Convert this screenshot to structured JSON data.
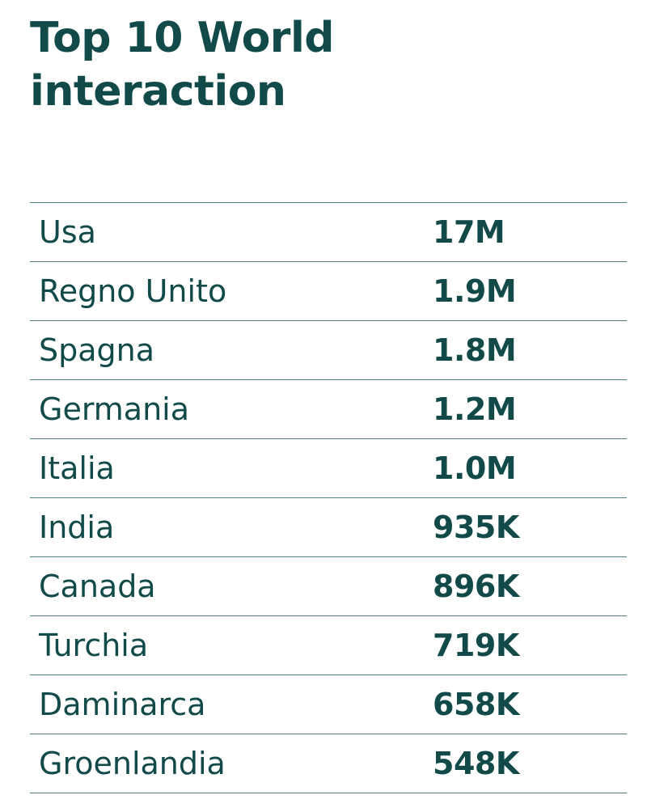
{
  "header": {
    "title_line1": "Top 10 World",
    "title_line2": "interaction"
  },
  "colors": {
    "text": "#124a4a",
    "divider": "#4f7f80",
    "background": "#ffffff"
  },
  "chart_data": {
    "type": "table",
    "title": "Top 10 World interaction",
    "rows": [
      {
        "country": "Usa",
        "value": "17M"
      },
      {
        "country": "Regno Unito",
        "value": "1.9M"
      },
      {
        "country": "Spagna",
        "value": "1.8M"
      },
      {
        "country": "Germania",
        "value": "1.2M"
      },
      {
        "country": "Italia",
        "value": "1.0M"
      },
      {
        "country": "India",
        "value": "935K"
      },
      {
        "country": "Canada",
        "value": "896K"
      },
      {
        "country": "Turchia",
        "value": "719K"
      },
      {
        "country": "Daminarca",
        "value": "658K"
      },
      {
        "country": "Groenlandia",
        "value": "548K"
      }
    ]
  }
}
